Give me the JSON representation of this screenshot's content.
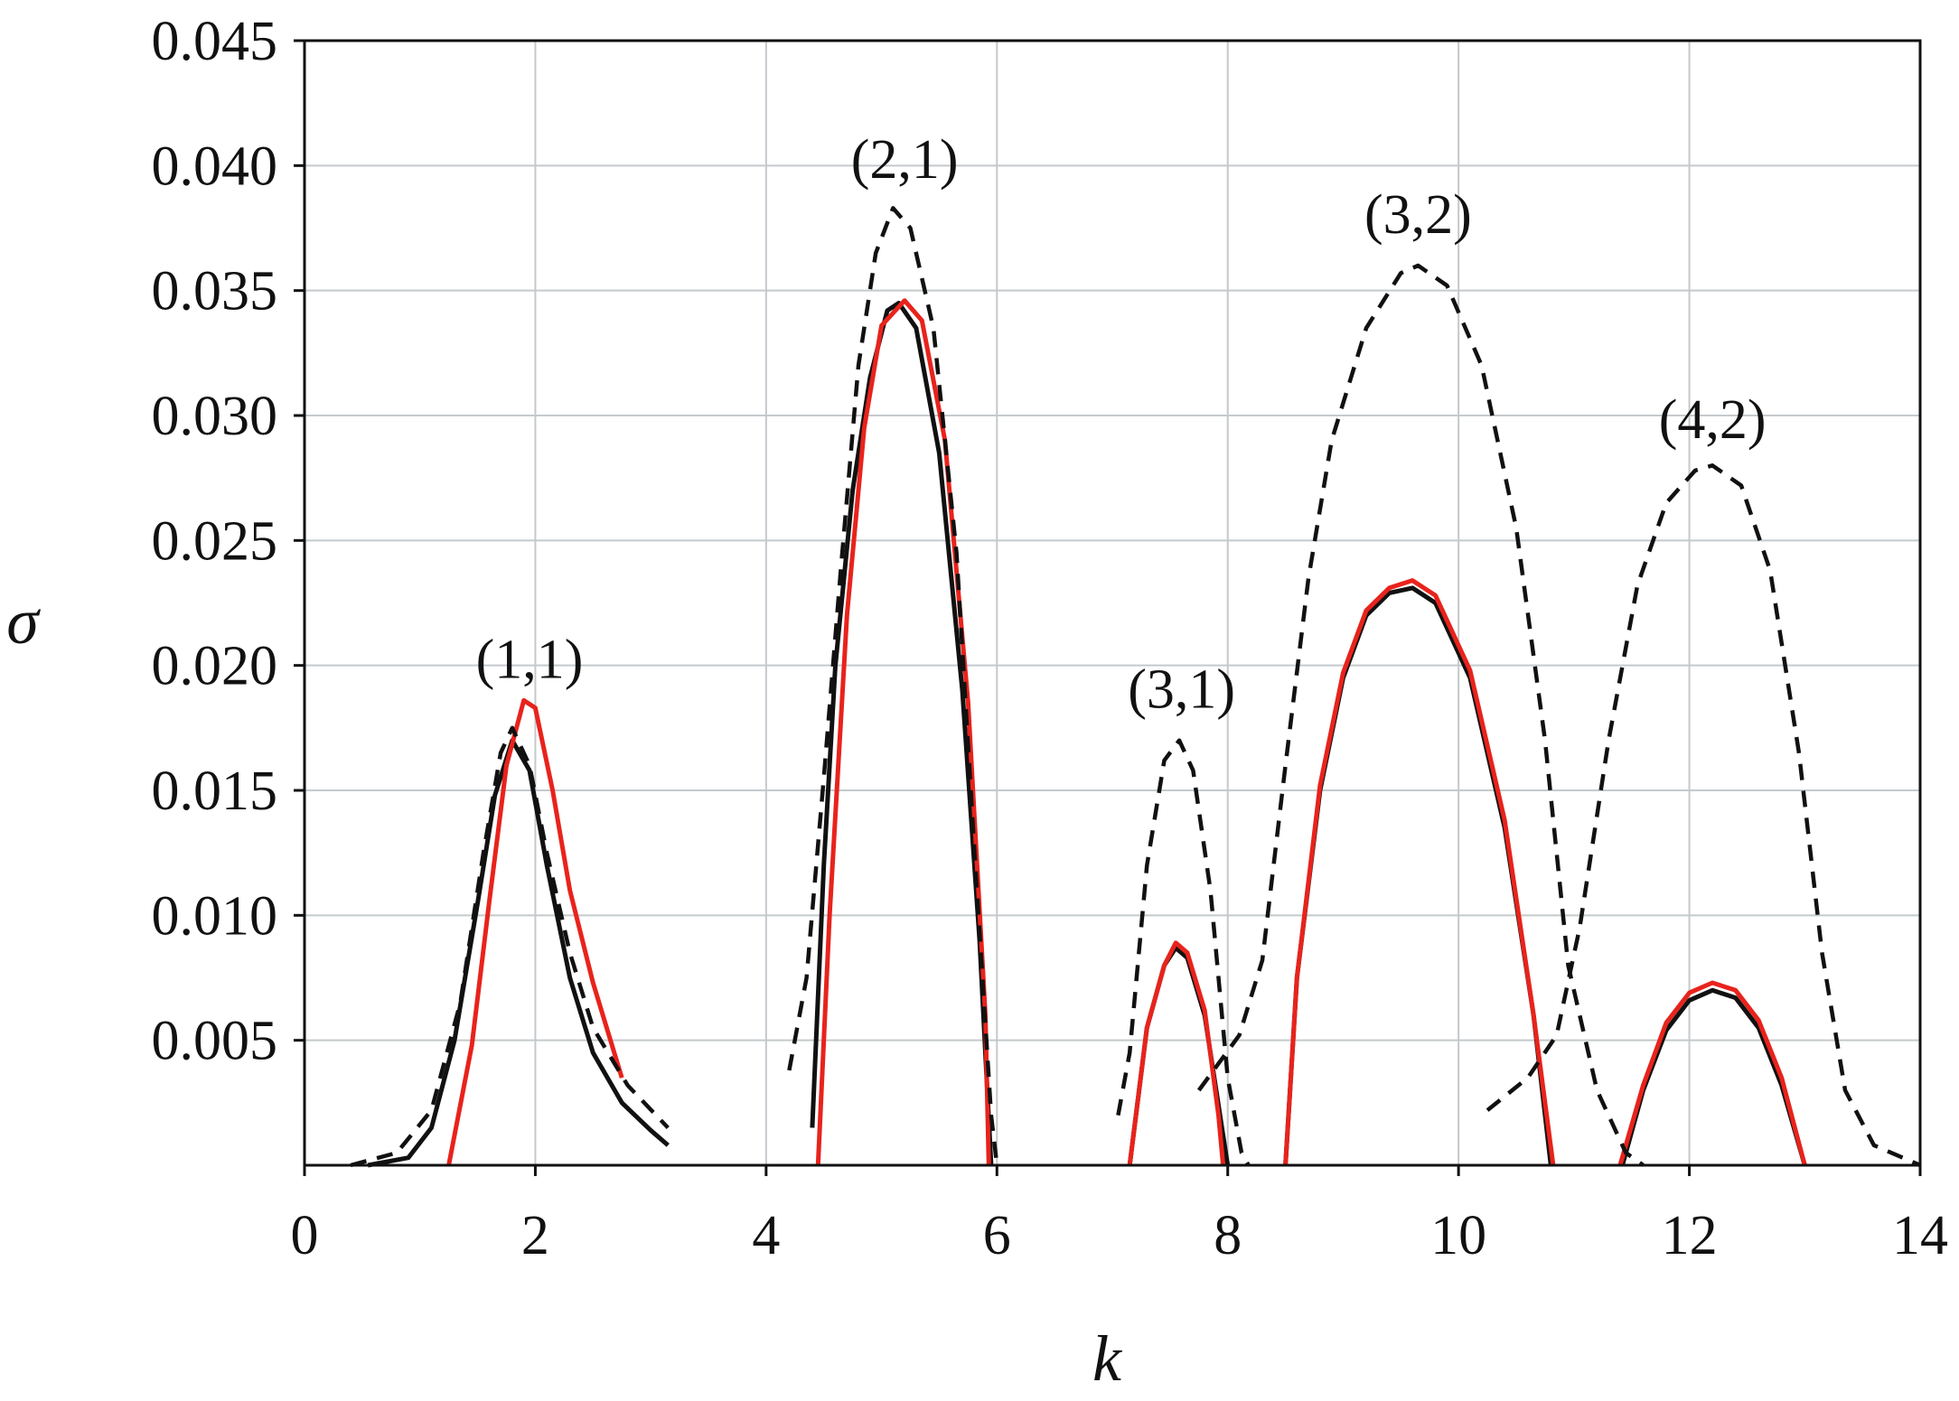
{
  "chart_data": {
    "type": "line",
    "xlabel": "k",
    "ylabel": "σ",
    "xlim": [
      0,
      14
    ],
    "ylim": [
      0,
      0.045
    ],
    "x_ticks": [
      "0",
      "2",
      "4",
      "6",
      "8",
      "10",
      "12",
      "14"
    ],
    "y_ticks": [
      "0.005",
      "0.010",
      "0.015",
      "0.020",
      "0.025",
      "0.030",
      "0.035",
      "0.040",
      "0.045"
    ],
    "grid": true,
    "annotations": [
      {
        "text": "(1,1)",
        "x": 1.95,
        "y": 0.0195
      },
      {
        "text": "(2,1)",
        "x": 5.2,
        "y": 0.0395
      },
      {
        "text": "(3,1)",
        "x": 7.6,
        "y": 0.0183
      },
      {
        "text": "(3,2)",
        "x": 9.65,
        "y": 0.0373
      },
      {
        "text": "(4,2)",
        "x": 12.2,
        "y": 0.0291
      }
    ],
    "series": [
      {
        "style": "solid",
        "color": "#111111",
        "segments": [
          [
            [
              0.55,
              0
            ],
            [
              0.9,
              0.0003
            ],
            [
              1.1,
              0.0015
            ],
            [
              1.3,
              0.005
            ],
            [
              1.5,
              0.0105
            ],
            [
              1.65,
              0.0148
            ],
            [
              1.8,
              0.017
            ],
            [
              1.95,
              0.0158
            ],
            [
              2.1,
              0.012
            ],
            [
              2.3,
              0.0075
            ],
            [
              2.5,
              0.0045
            ],
            [
              2.75,
              0.0025
            ],
            [
              3.0,
              0.0014
            ],
            [
              3.15,
              0.0008
            ]
          ],
          [
            [
              4.4,
              0.0015
            ],
            [
              4.5,
              0.012
            ],
            [
              4.6,
              0.02
            ],
            [
              4.75,
              0.027
            ],
            [
              4.9,
              0.0315
            ],
            [
              5.05,
              0.0342
            ],
            [
              5.15,
              0.0345
            ],
            [
              5.3,
              0.0335
            ],
            [
              5.5,
              0.0285
            ],
            [
              5.7,
              0.019
            ],
            [
              5.85,
              0.009
            ],
            [
              5.95,
              0
            ]
          ],
          [
            [
              7.15,
              0
            ],
            [
              7.3,
              0.0055
            ],
            [
              7.45,
              0.008
            ],
            [
              7.55,
              0.0087
            ],
            [
              7.65,
              0.0083
            ],
            [
              7.8,
              0.006
            ],
            [
              7.95,
              0.0015
            ],
            [
              8.0,
              0
            ]
          ],
          [
            [
              8.5,
              0
            ],
            [
              8.6,
              0.0075
            ],
            [
              8.8,
              0.015
            ],
            [
              9.0,
              0.0195
            ],
            [
              9.2,
              0.022
            ],
            [
              9.4,
              0.0229
            ],
            [
              9.6,
              0.0231
            ],
            [
              9.8,
              0.0225
            ],
            [
              10.1,
              0.0195
            ],
            [
              10.4,
              0.0135
            ],
            [
              10.65,
              0.006
            ],
            [
              10.8,
              0
            ]
          ],
          [
            [
              11.42,
              0
            ],
            [
              11.6,
              0.003
            ],
            [
              11.8,
              0.0054
            ],
            [
              12.0,
              0.0066
            ],
            [
              12.2,
              0.007
            ],
            [
              12.4,
              0.0067
            ],
            [
              12.6,
              0.0055
            ],
            [
              12.8,
              0.0032
            ],
            [
              13.0,
              0
            ]
          ]
        ]
      },
      {
        "style": "solid",
        "color": "#e8231c",
        "segments": [
          [
            [
              1.25,
              0
            ],
            [
              1.45,
              0.0048
            ],
            [
              1.6,
              0.0105
            ],
            [
              1.75,
              0.016
            ],
            [
              1.9,
              0.0186
            ],
            [
              2.0,
              0.0183
            ],
            [
              2.15,
              0.015
            ],
            [
              2.3,
              0.011
            ],
            [
              2.5,
              0.0073
            ],
            [
              2.75,
              0.0035
            ]
          ],
          [
            [
              4.45,
              0
            ],
            [
              4.55,
              0.01
            ],
            [
              4.7,
              0.022
            ],
            [
              4.85,
              0.0295
            ],
            [
              5.0,
              0.0336
            ],
            [
              5.2,
              0.0346
            ],
            [
              5.35,
              0.0338
            ],
            [
              5.55,
              0.029
            ],
            [
              5.75,
              0.0185
            ],
            [
              5.9,
              0.006
            ],
            [
              5.93,
              0
            ]
          ],
          [
            [
              7.15,
              0
            ],
            [
              7.3,
              0.0055
            ],
            [
              7.45,
              0.008
            ],
            [
              7.55,
              0.0089
            ],
            [
              7.65,
              0.0085
            ],
            [
              7.8,
              0.0062
            ],
            [
              7.92,
              0.002
            ],
            [
              7.96,
              0
            ]
          ],
          [
            [
              8.5,
              0
            ],
            [
              8.6,
              0.0075
            ],
            [
              8.8,
              0.0152
            ],
            [
              9.0,
              0.0197
            ],
            [
              9.2,
              0.0222
            ],
            [
              9.4,
              0.0231
            ],
            [
              9.6,
              0.0234
            ],
            [
              9.8,
              0.0228
            ],
            [
              10.1,
              0.0198
            ],
            [
              10.4,
              0.0138
            ],
            [
              10.65,
              0.006
            ],
            [
              10.82,
              0
            ]
          ],
          [
            [
              11.4,
              0
            ],
            [
              11.6,
              0.0032
            ],
            [
              11.8,
              0.0057
            ],
            [
              12.0,
              0.0069
            ],
            [
              12.2,
              0.0073
            ],
            [
              12.4,
              0.007
            ],
            [
              12.6,
              0.0058
            ],
            [
              12.8,
              0.0035
            ],
            [
              13.0,
              0
            ]
          ]
        ]
      },
      {
        "style": "dashed",
        "color": "#111111",
        "segments": [
          [
            [
              0.4,
              0
            ],
            [
              0.8,
              0.0005
            ],
            [
              1.1,
              0.0022
            ],
            [
              1.35,
              0.0065
            ],
            [
              1.55,
              0.0125
            ],
            [
              1.7,
              0.0165
            ],
            [
              1.8,
              0.0175
            ],
            [
              1.95,
              0.016
            ],
            [
              2.1,
              0.0125
            ],
            [
              2.3,
              0.0085
            ],
            [
              2.5,
              0.0055
            ],
            [
              2.8,
              0.0032
            ],
            [
              3.15,
              0.0015
            ]
          ],
          [
            [
              4.2,
              0.0038
            ],
            [
              4.35,
              0.0075
            ],
            [
              4.5,
              0.0155
            ],
            [
              4.65,
              0.024
            ],
            [
              4.8,
              0.032
            ],
            [
              4.95,
              0.0365
            ],
            [
              5.1,
              0.0383
            ],
            [
              5.25,
              0.0375
            ],
            [
              5.45,
              0.0335
            ],
            [
              5.65,
              0.0245
            ],
            [
              5.8,
              0.013
            ],
            [
              5.95,
              0.002
            ],
            [
              6.0,
              0
            ]
          ],
          [
            [
              7.05,
              0.002
            ],
            [
              7.15,
              0.0045
            ],
            [
              7.3,
              0.012
            ],
            [
              7.45,
              0.0162
            ],
            [
              7.58,
              0.017
            ],
            [
              7.7,
              0.0158
            ],
            [
              7.85,
              0.011
            ],
            [
              8.0,
              0.0035
            ],
            [
              8.12,
              0.0005
            ],
            [
              8.18,
              0
            ]
          ],
          [
            [
              7.75,
              0.003
            ],
            [
              8.1,
              0.0052
            ],
            [
              8.3,
              0.0082
            ],
            [
              8.5,
              0.016
            ],
            [
              8.7,
              0.0235
            ],
            [
              8.9,
              0.029
            ],
            [
              9.2,
              0.0335
            ],
            [
              9.5,
              0.0357
            ],
            [
              9.65,
              0.036
            ],
            [
              9.9,
              0.0352
            ],
            [
              10.2,
              0.032
            ],
            [
              10.5,
              0.0255
            ],
            [
              10.75,
              0.017
            ],
            [
              10.95,
              0.008
            ],
            [
              11.2,
              0.003
            ],
            [
              11.45,
              0.0005
            ],
            [
              11.6,
              0
            ]
          ],
          [
            [
              10.25,
              0.0022
            ],
            [
              10.6,
              0.0035
            ],
            [
              10.85,
              0.0052
            ],
            [
              11.05,
              0.0095
            ],
            [
              11.3,
              0.017
            ],
            [
              11.55,
              0.0232
            ],
            [
              11.8,
              0.0265
            ],
            [
              12.05,
              0.0278
            ],
            [
              12.2,
              0.028
            ],
            [
              12.45,
              0.0272
            ],
            [
              12.7,
              0.0238
            ],
            [
              12.95,
              0.0165
            ],
            [
              13.15,
              0.0085
            ],
            [
              13.35,
              0.003
            ],
            [
              13.6,
              0.0008
            ],
            [
              14.0,
              0
            ]
          ]
        ]
      }
    ]
  }
}
